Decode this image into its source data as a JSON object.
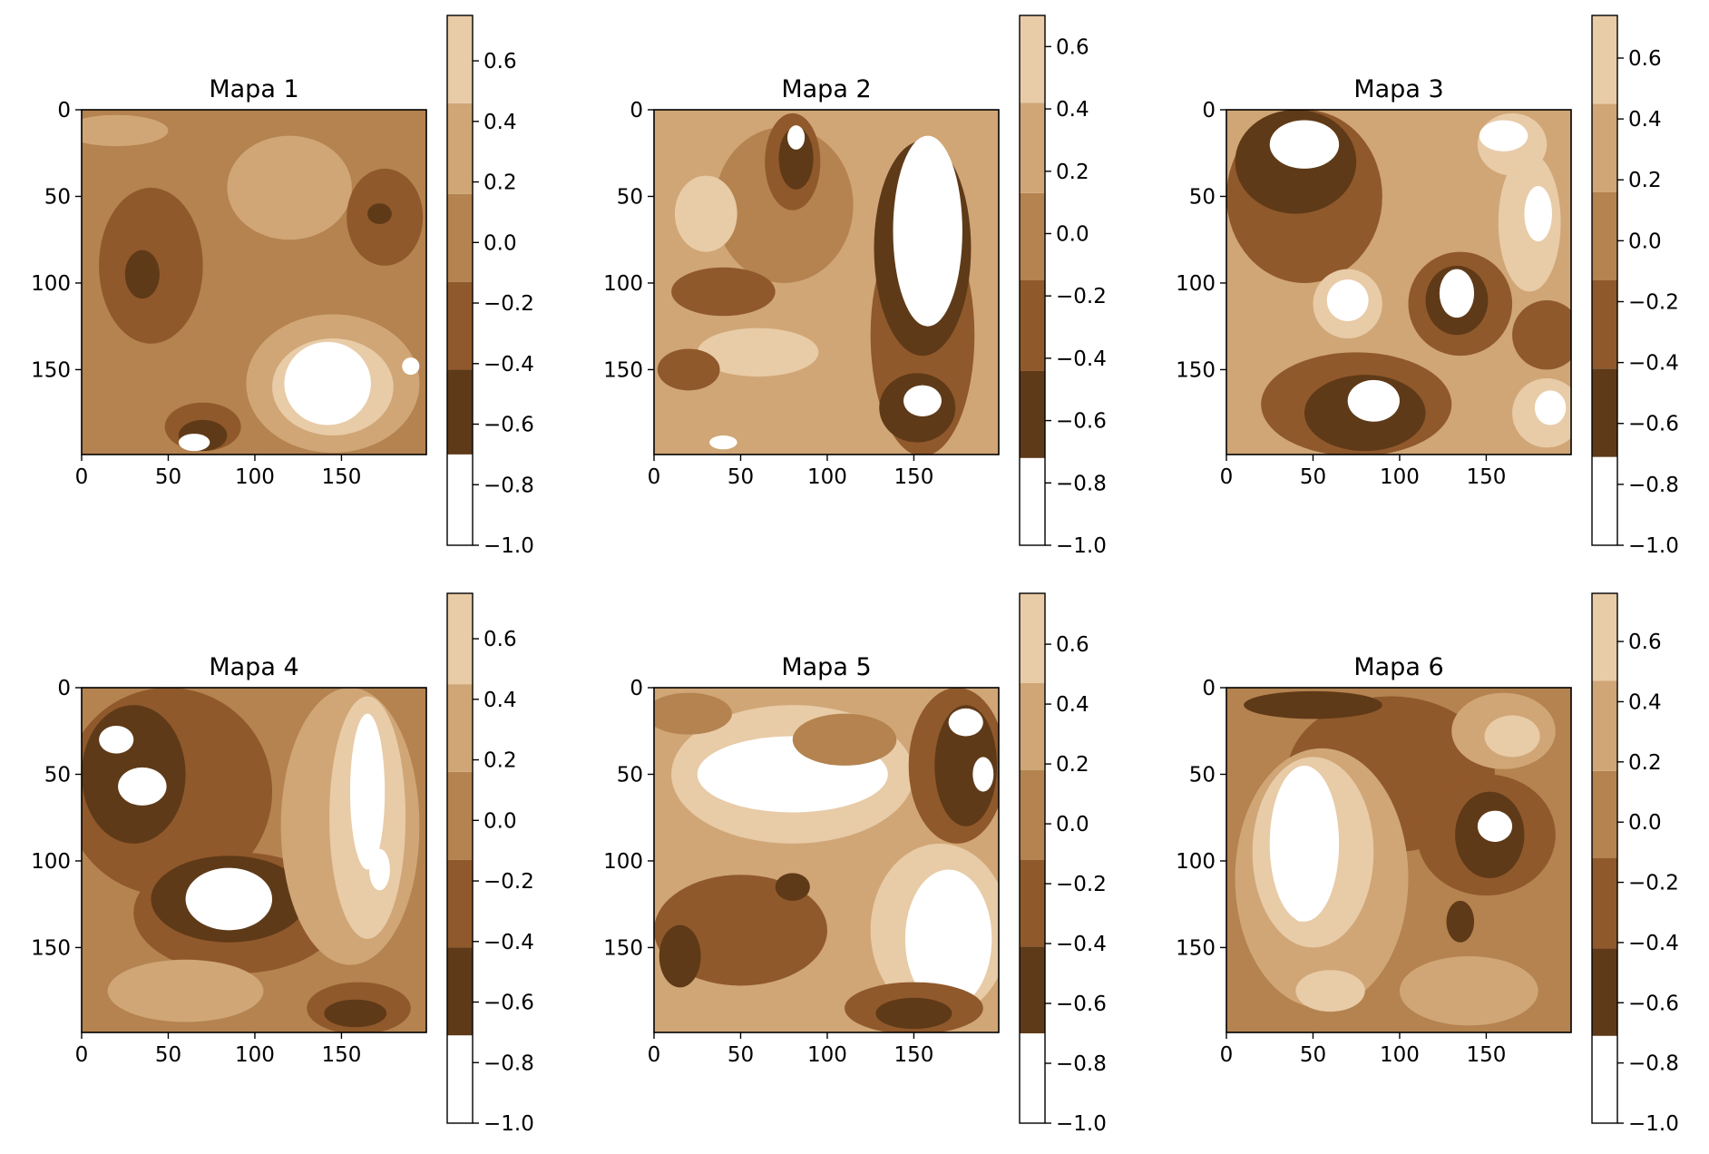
{
  "chart_data": {
    "type": "heatmap",
    "figure": "2x3 grid of filled-contour maps with individual colorbars",
    "colors": {
      "levels": [
        "#ffffff",
        "#5f3a18",
        "#90592b",
        "#b4834f",
        "#d0a676",
        "#e8cba7"
      ],
      "axes_edge": "#000000"
    },
    "panels": [
      {
        "title": "Mapa 1",
        "x_ticks": [
          "0",
          "50",
          "100",
          "150"
        ],
        "y_ticks": [
          "0",
          "50",
          "100",
          "150"
        ],
        "xlim": [
          0,
          199
        ],
        "ylim": [
          199,
          0
        ],
        "cbar_ticks": [
          "0.6",
          "0.4",
          "0.2",
          "0.0",
          "−0.2",
          "−0.4",
          "−0.6",
          "−0.8",
          "−1.0"
        ],
        "cbar_range": [
          -1.0,
          0.75
        ],
        "cbar_levels": [
          -1.0,
          -0.7,
          -0.42,
          -0.13,
          0.16,
          0.46,
          0.75
        ],
        "base_level": 3,
        "regions": [
          {
            "lv": 4,
            "x": 120,
            "y": 45,
            "rx": 36,
            "ry": 30
          },
          {
            "lv": 4,
            "x": 20,
            "y": 12,
            "rx": 30,
            "ry": 9
          },
          {
            "lv": 2,
            "x": 40,
            "y": 90,
            "rx": 30,
            "ry": 45
          },
          {
            "lv": 1,
            "x": 35,
            "y": 95,
            "rx": 10,
            "ry": 14
          },
          {
            "lv": 2,
            "x": 175,
            "y": 62,
            "rx": 22,
            "ry": 28
          },
          {
            "lv": 1,
            "x": 172,
            "y": 60,
            "rx": 7,
            "ry": 6
          },
          {
            "lv": 2,
            "x": 70,
            "y": 183,
            "rx": 22,
            "ry": 14
          },
          {
            "lv": 1,
            "x": 70,
            "y": 188,
            "rx": 14,
            "ry": 9
          },
          {
            "lv": 0,
            "x": 65,
            "y": 192,
            "rx": 9,
            "ry": 5
          },
          {
            "lv": 4,
            "x": 145,
            "y": 158,
            "rx": 50,
            "ry": 40
          },
          {
            "lv": 5,
            "x": 145,
            "y": 160,
            "rx": 35,
            "ry": 28
          },
          {
            "lv": 0,
            "x": 142,
            "y": 158,
            "rx": 25,
            "ry": 24
          },
          {
            "lv": 0,
            "x": 190,
            "y": 148,
            "rx": 5,
            "ry": 5
          }
        ]
      },
      {
        "title": "Mapa 2",
        "x_ticks": [
          "0",
          "50",
          "100",
          "150"
        ],
        "y_ticks": [
          "0",
          "50",
          "100",
          "150"
        ],
        "xlim": [
          0,
          199
        ],
        "ylim": [
          199,
          0
        ],
        "cbar_ticks": [
          "0.6",
          "0.4",
          "0.2",
          "0.0",
          "−0.2",
          "−0.4",
          "−0.6",
          "−0.8",
          "−1.0"
        ],
        "cbar_range": [
          -1.0,
          0.7
        ],
        "cbar_levels": [
          -1.0,
          -0.72,
          -0.44,
          -0.15,
          0.13,
          0.42,
          0.7
        ],
        "base_level": 4,
        "regions": [
          {
            "lv": 3,
            "x": 75,
            "y": 55,
            "rx": 40,
            "ry": 45
          },
          {
            "lv": 2,
            "x": 80,
            "y": 30,
            "rx": 16,
            "ry": 28
          },
          {
            "lv": 1,
            "x": 82,
            "y": 28,
            "rx": 10,
            "ry": 18
          },
          {
            "lv": 0,
            "x": 82,
            "y": 16,
            "rx": 5,
            "ry": 7
          },
          {
            "lv": 2,
            "x": 155,
            "y": 130,
            "rx": 30,
            "ry": 70
          },
          {
            "lv": 1,
            "x": 155,
            "y": 80,
            "rx": 28,
            "ry": 62
          },
          {
            "lv": 0,
            "x": 158,
            "y": 70,
            "rx": 20,
            "ry": 55
          },
          {
            "lv": 1,
            "x": 152,
            "y": 172,
            "rx": 22,
            "ry": 20
          },
          {
            "lv": 0,
            "x": 155,
            "y": 168,
            "rx": 11,
            "ry": 9
          },
          {
            "lv": 2,
            "x": 40,
            "y": 105,
            "rx": 30,
            "ry": 14
          },
          {
            "lv": 5,
            "x": 60,
            "y": 140,
            "rx": 35,
            "ry": 14
          },
          {
            "lv": 2,
            "x": 20,
            "y": 150,
            "rx": 18,
            "ry": 12
          },
          {
            "lv": 0,
            "x": 40,
            "y": 192,
            "rx": 8,
            "ry": 4
          },
          {
            "lv": 5,
            "x": 30,
            "y": 60,
            "rx": 18,
            "ry": 22
          }
        ]
      },
      {
        "title": "Mapa 3",
        "x_ticks": [
          "0",
          "50",
          "100",
          "150"
        ],
        "y_ticks": [
          "0",
          "50",
          "100",
          "150"
        ],
        "xlim": [
          0,
          199
        ],
        "ylim": [
          199,
          0
        ],
        "cbar_ticks": [
          "0.6",
          "0.4",
          "0.2",
          "0.0",
          "−0.2",
          "−0.4",
          "−0.6",
          "−0.8",
          "−1.0"
        ],
        "cbar_range": [
          -1.0,
          0.74
        ],
        "cbar_levels": [
          -1.0,
          -0.71,
          -0.42,
          -0.13,
          0.16,
          0.45,
          0.74
        ],
        "base_level": 4,
        "regions": [
          {
            "lv": 2,
            "x": 45,
            "y": 50,
            "rx": 45,
            "ry": 50
          },
          {
            "lv": 1,
            "x": 40,
            "y": 30,
            "rx": 35,
            "ry": 30
          },
          {
            "lv": 0,
            "x": 45,
            "y": 20,
            "rx": 20,
            "ry": 14
          },
          {
            "lv": 2,
            "x": 135,
            "y": 112,
            "rx": 30,
            "ry": 30
          },
          {
            "lv": 1,
            "x": 133,
            "y": 110,
            "rx": 18,
            "ry": 20
          },
          {
            "lv": 0,
            "x": 133,
            "y": 106,
            "rx": 10,
            "ry": 14
          },
          {
            "lv": 2,
            "x": 75,
            "y": 170,
            "rx": 55,
            "ry": 30
          },
          {
            "lv": 1,
            "x": 80,
            "y": 175,
            "rx": 35,
            "ry": 22
          },
          {
            "lv": 0,
            "x": 85,
            "y": 168,
            "rx": 15,
            "ry": 12
          },
          {
            "lv": 2,
            "x": 185,
            "y": 130,
            "rx": 20,
            "ry": 20
          },
          {
            "lv": 5,
            "x": 165,
            "y": 20,
            "rx": 20,
            "ry": 18
          },
          {
            "lv": 0,
            "x": 160,
            "y": 15,
            "rx": 14,
            "ry": 9
          },
          {
            "lv": 5,
            "x": 175,
            "y": 65,
            "rx": 18,
            "ry": 40
          },
          {
            "lv": 0,
            "x": 180,
            "y": 60,
            "rx": 8,
            "ry": 16
          },
          {
            "lv": 5,
            "x": 70,
            "y": 112,
            "rx": 20,
            "ry": 20
          },
          {
            "lv": 0,
            "x": 70,
            "y": 110,
            "rx": 12,
            "ry": 12
          },
          {
            "lv": 5,
            "x": 185,
            "y": 175,
            "rx": 20,
            "ry": 20
          },
          {
            "lv": 0,
            "x": 187,
            "y": 172,
            "rx": 9,
            "ry": 10
          }
        ]
      },
      {
        "title": "Mapa 4",
        "x_ticks": [
          "0",
          "50",
          "100",
          "150"
        ],
        "y_ticks": [
          "0",
          "50",
          "100",
          "150"
        ],
        "xlim": [
          0,
          199
        ],
        "ylim": [
          199,
          0
        ],
        "cbar_ticks": [
          "0.6",
          "0.4",
          "0.2",
          "0.0",
          "−0.2",
          "−0.4",
          "−0.6",
          "−0.8",
          "−1.0"
        ],
        "cbar_range": [
          -1.0,
          0.75
        ],
        "cbar_levels": [
          -1.0,
          -0.71,
          -0.42,
          -0.13,
          0.16,
          0.45,
          0.75
        ],
        "base_level": 3,
        "regions": [
          {
            "lv": 2,
            "x": 50,
            "y": 60,
            "rx": 60,
            "ry": 60
          },
          {
            "lv": 1,
            "x": 30,
            "y": 50,
            "rx": 30,
            "ry": 40
          },
          {
            "lv": 0,
            "x": 20,
            "y": 30,
            "rx": 10,
            "ry": 8
          },
          {
            "lv": 0,
            "x": 35,
            "y": 57,
            "rx": 14,
            "ry": 11
          },
          {
            "lv": 2,
            "x": 90,
            "y": 130,
            "rx": 60,
            "ry": 35
          },
          {
            "lv": 1,
            "x": 85,
            "y": 122,
            "rx": 45,
            "ry": 25
          },
          {
            "lv": 0,
            "x": 85,
            "y": 122,
            "rx": 25,
            "ry": 18
          },
          {
            "lv": 2,
            "x": 160,
            "y": 185,
            "rx": 30,
            "ry": 15
          },
          {
            "lv": 1,
            "x": 158,
            "y": 188,
            "rx": 18,
            "ry": 8
          },
          {
            "lv": 4,
            "x": 155,
            "y": 80,
            "rx": 40,
            "ry": 80
          },
          {
            "lv": 5,
            "x": 165,
            "y": 75,
            "rx": 22,
            "ry": 70
          },
          {
            "lv": 0,
            "x": 165,
            "y": 60,
            "rx": 10,
            "ry": 45
          },
          {
            "lv": 0,
            "x": 172,
            "y": 105,
            "rx": 6,
            "ry": 12
          },
          {
            "lv": 4,
            "x": 60,
            "y": 175,
            "rx": 45,
            "ry": 18
          }
        ]
      },
      {
        "title": "Mapa 5",
        "x_ticks": [
          "0",
          "50",
          "100",
          "150"
        ],
        "y_ticks": [
          "0",
          "50",
          "100",
          "150"
        ],
        "xlim": [
          0,
          199
        ],
        "ylim": [
          199,
          0
        ],
        "cbar_ticks": [
          "0.6",
          "0.4",
          "0.2",
          "0.0",
          "−0.2",
          "−0.4",
          "−0.6",
          "−0.8",
          "−1.0"
        ],
        "cbar_range": [
          -1.0,
          0.77
        ],
        "cbar_levels": [
          -1.0,
          -0.7,
          -0.41,
          -0.12,
          0.18,
          0.47,
          0.77
        ],
        "base_level": 4,
        "regions": [
          {
            "lv": 5,
            "x": 80,
            "y": 50,
            "rx": 70,
            "ry": 40
          },
          {
            "lv": 0,
            "x": 80,
            "y": 50,
            "rx": 55,
            "ry": 22
          },
          {
            "lv": 5,
            "x": 165,
            "y": 140,
            "rx": 40,
            "ry": 50
          },
          {
            "lv": 0,
            "x": 170,
            "y": 145,
            "rx": 25,
            "ry": 40
          },
          {
            "lv": 2,
            "x": 50,
            "y": 140,
            "rx": 50,
            "ry": 32
          },
          {
            "lv": 1,
            "x": 15,
            "y": 155,
            "rx": 12,
            "ry": 18
          },
          {
            "lv": 1,
            "x": 80,
            "y": 115,
            "rx": 10,
            "ry": 8
          },
          {
            "lv": 2,
            "x": 175,
            "y": 45,
            "rx": 28,
            "ry": 45
          },
          {
            "lv": 1,
            "x": 180,
            "y": 45,
            "rx": 18,
            "ry": 35
          },
          {
            "lv": 0,
            "x": 180,
            "y": 20,
            "rx": 10,
            "ry": 8
          },
          {
            "lv": 0,
            "x": 190,
            "y": 50,
            "rx": 6,
            "ry": 10
          },
          {
            "lv": 2,
            "x": 150,
            "y": 185,
            "rx": 40,
            "ry": 15
          },
          {
            "lv": 1,
            "x": 150,
            "y": 188,
            "rx": 22,
            "ry": 9
          },
          {
            "lv": 3,
            "x": 20,
            "y": 15,
            "rx": 25,
            "ry": 12
          },
          {
            "lv": 3,
            "x": 110,
            "y": 30,
            "rx": 30,
            "ry": 15
          }
        ]
      },
      {
        "title": "Mapa 6",
        "x_ticks": [
          "0",
          "50",
          "100",
          "150"
        ],
        "y_ticks": [
          "0",
          "50",
          "100",
          "150"
        ],
        "xlim": [
          0,
          199
        ],
        "ylim": [
          199,
          0
        ],
        "cbar_ticks": [
          "0.6",
          "0.4",
          "0.2",
          "0.0",
          "−0.2",
          "−0.4",
          "−0.6",
          "−0.8",
          "−1.0"
        ],
        "cbar_range": [
          -1.0,
          0.76
        ],
        "cbar_levels": [
          -1.0,
          -0.71,
          -0.42,
          -0.12,
          0.17,
          0.47,
          0.76
        ],
        "base_level": 3,
        "regions": [
          {
            "lv": 2,
            "x": 95,
            "y": 50,
            "rx": 60,
            "ry": 45
          },
          {
            "lv": 1,
            "x": 50,
            "y": 10,
            "rx": 40,
            "ry": 8
          },
          {
            "lv": 2,
            "x": 150,
            "y": 85,
            "rx": 40,
            "ry": 35
          },
          {
            "lv": 1,
            "x": 152,
            "y": 85,
            "rx": 20,
            "ry": 25
          },
          {
            "lv": 0,
            "x": 155,
            "y": 80,
            "rx": 10,
            "ry": 9
          },
          {
            "lv": 1,
            "x": 135,
            "y": 135,
            "rx": 8,
            "ry": 12
          },
          {
            "lv": 4,
            "x": 55,
            "y": 110,
            "rx": 50,
            "ry": 75
          },
          {
            "lv": 5,
            "x": 50,
            "y": 95,
            "rx": 35,
            "ry": 55
          },
          {
            "lv": 0,
            "x": 45,
            "y": 90,
            "rx": 20,
            "ry": 45
          },
          {
            "lv": 0,
            "x": 43,
            "y": 125,
            "rx": 6,
            "ry": 10
          },
          {
            "lv": 4,
            "x": 160,
            "y": 25,
            "rx": 30,
            "ry": 22
          },
          {
            "lv": 5,
            "x": 165,
            "y": 28,
            "rx": 16,
            "ry": 12
          },
          {
            "lv": 4,
            "x": 140,
            "y": 175,
            "rx": 40,
            "ry": 20
          },
          {
            "lv": 5,
            "x": 60,
            "y": 175,
            "rx": 20,
            "ry": 12
          }
        ]
      }
    ]
  }
}
